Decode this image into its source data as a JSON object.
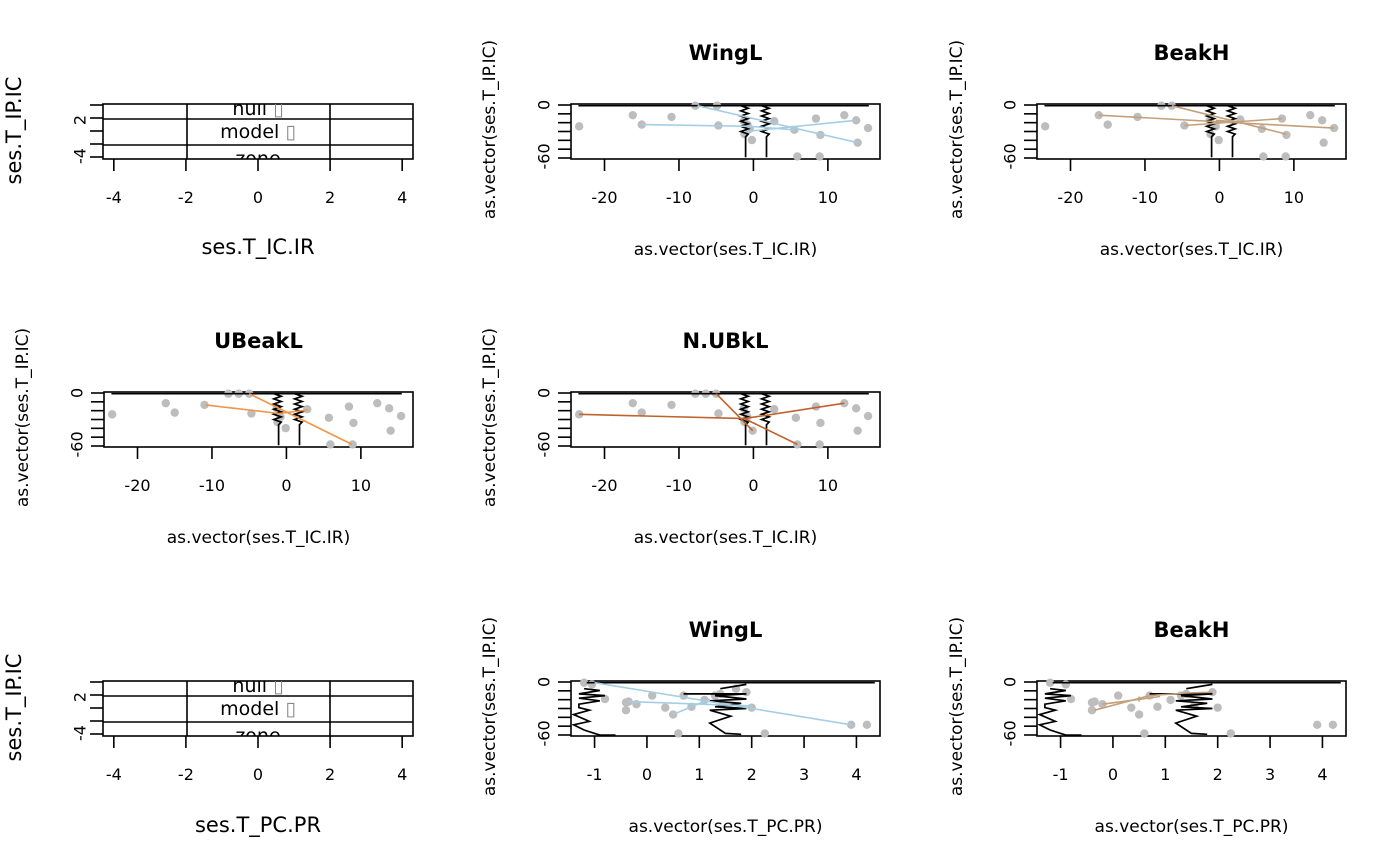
{
  "chart_data": [
    {
      "id": "legend-ir",
      "type": "table",
      "title": "",
      "xlabel": "ses.T_IC.IR",
      "ylabel": "ses.T_IP.IC",
      "xlim": [
        -4.3,
        4.3
      ],
      "xticks": [
        "-4",
        "-2",
        "0",
        "2",
        "4"
      ],
      "xtick_values": [
        -4,
        -2,
        0,
        2,
        4
      ],
      "yticks": [
        "2",
        "-4"
      ],
      "legend_rows": [
        "null",
        "model",
        "zone"
      ],
      "legend_glyph": "▯"
    },
    {
      "id": "wingl-ir",
      "type": "scatter",
      "title": "WingL",
      "xlabel": "as.vector(ses.T_IC.IR)",
      "ylabel": "as.vector(ses.T_IP.IC)",
      "xlim": [
        -24.5,
        17
      ],
      "ylim": [
        -63,
        1
      ],
      "xticks": [
        "-20",
        "-10",
        "0",
        "10"
      ],
      "xtick_values": [
        -20,
        -10,
        0,
        10
      ],
      "yticks": [
        "0",
        "-60"
      ],
      "ytick_values": [
        0,
        -60
      ],
      "line_color": "#a6cee3",
      "points": [
        [
          -23.4,
          -25
        ],
        [
          -16.2,
          -12
        ],
        [
          -15,
          -23
        ],
        [
          -11,
          -14
        ],
        [
          -7.8,
          -1
        ],
        [
          -4.9,
          -1
        ],
        [
          -4.7,
          -24
        ],
        [
          -1.3,
          -19
        ],
        [
          -0.8,
          -23
        ],
        [
          -1.2,
          -34
        ],
        [
          -0.2,
          -41
        ],
        [
          2.8,
          -19
        ],
        [
          5.9,
          -60
        ],
        [
          5.5,
          -29
        ],
        [
          8.4,
          -16
        ],
        [
          8.9,
          -60
        ],
        [
          9,
          -35
        ],
        [
          12.2,
          -12
        ],
        [
          13.8,
          -18
        ],
        [
          14,
          -44
        ],
        [
          15.4,
          -27
        ],
        [
          -0.5,
          -28
        ]
      ],
      "segments": [
        [
          [
            -15,
            -23
          ],
          [
            -0.5,
            -25
          ]
        ],
        [
          [
            -7.5,
            -1
          ],
          [
            14,
            -44
          ]
        ],
        [
          [
            -1,
            -31
          ],
          [
            13.8,
            -18
          ]
        ],
        [
          [
            -0.5,
            -25
          ],
          [
            5.5,
            -29
          ]
        ]
      ]
    },
    {
      "id": "beakh-ir",
      "type": "scatter",
      "title": "BeakH",
      "xlabel": "as.vector(ses.T_IC.IR)",
      "ylabel": "as.vector(ses.T_IP.IC)",
      "xlim": [
        -24.5,
        17
      ],
      "ylim": [
        -63,
        1
      ],
      "xticks": [
        "-20",
        "-10",
        "0",
        "10"
      ],
      "xtick_values": [
        -20,
        -10,
        0,
        10
      ],
      "yticks": [
        "0",
        "-60"
      ],
      "ytick_values": [
        0,
        -60
      ],
      "line_color": "#c4a07a",
      "points": [
        [
          -23.4,
          -25
        ],
        [
          -16.2,
          -12
        ],
        [
          -15,
          -23
        ],
        [
          -11,
          -14
        ],
        [
          -7.8,
          -1
        ],
        [
          -6.4,
          -1
        ],
        [
          -4.7,
          -24
        ],
        [
          -1.3,
          -18
        ],
        [
          -0.5,
          -25
        ],
        [
          -1.2,
          -34
        ],
        [
          -0.1,
          -41
        ],
        [
          2.8,
          -17
        ],
        [
          5.9,
          -60
        ],
        [
          5.7,
          -28
        ],
        [
          8.4,
          -16
        ],
        [
          8.9,
          -60
        ],
        [
          9,
          -35
        ],
        [
          12.2,
          -12
        ],
        [
          13.8,
          -18
        ],
        [
          14,
          -44
        ],
        [
          15.4,
          -27
        ]
      ],
      "segments": [
        [
          [
            -16.2,
            -12
          ],
          [
            15.4,
            -27
          ]
        ],
        [
          [
            -6.4,
            -1
          ],
          [
            9,
            -34
          ]
        ],
        [
          [
            -4.7,
            -24
          ],
          [
            8.4,
            -16
          ]
        ],
        [
          [
            -0.5,
            -18
          ],
          [
            2.8,
            -20
          ]
        ]
      ]
    },
    {
      "id": "ubeakl-ir",
      "type": "scatter",
      "title": "UBeakL",
      "xlabel": "as.vector(ses.T_IC.IR)",
      "ylabel": "as.vector(ses.T_IP.IC)",
      "xlim": [
        -24.5,
        17
      ],
      "ylim": [
        -63,
        1
      ],
      "xticks": [
        "-20",
        "-10",
        "0",
        "10"
      ],
      "xtick_values": [
        -20,
        -10,
        0,
        10
      ],
      "yticks": [
        "0",
        "-60"
      ],
      "ytick_values": [
        0,
        -60
      ],
      "line_color": "#f0954a",
      "points": [
        [
          -23.4,
          -25
        ],
        [
          -16.2,
          -12
        ],
        [
          -15,
          -23
        ],
        [
          -11,
          -14
        ],
        [
          -7.8,
          -1
        ],
        [
          -6.4,
          -1
        ],
        [
          -5,
          -1
        ],
        [
          -4.7,
          -24
        ],
        [
          -1.3,
          -18
        ],
        [
          -0.8,
          -28
        ],
        [
          -1.2,
          -34
        ],
        [
          -0.1,
          -41
        ],
        [
          2.8,
          -19
        ],
        [
          5.9,
          -60
        ],
        [
          5.7,
          -29
        ],
        [
          8.4,
          -16
        ],
        [
          8.9,
          -60
        ],
        [
          9,
          -35
        ],
        [
          12.2,
          -12
        ],
        [
          13.8,
          -18
        ],
        [
          14,
          -44
        ],
        [
          15.4,
          -27
        ]
      ],
      "segments": [
        [
          [
            -10.9,
            -14
          ],
          [
            -1,
            -24
          ]
        ],
        [
          [
            -1,
            -24
          ],
          [
            2.8,
            -20
          ]
        ],
        [
          [
            -5,
            -1
          ],
          [
            8.8,
            -60
          ]
        ]
      ]
    },
    {
      "id": "nubkl-ir",
      "type": "scatter",
      "title": "N.UBkL",
      "xlabel": "as.vector(ses.T_IC.IR)",
      "ylabel": "as.vector(ses.T_IP.IC)",
      "xlim": [
        -24.5,
        17
      ],
      "ylim": [
        -63,
        1
      ],
      "xticks": [
        "-20",
        "-10",
        "0",
        "10"
      ],
      "xtick_values": [
        -20,
        -10,
        0,
        10
      ],
      "yticks": [
        "0",
        "-60"
      ],
      "ytick_values": [
        0,
        -60
      ],
      "line_color": "#c0622c",
      "points": [
        [
          -23.4,
          -25
        ],
        [
          -16.2,
          -12
        ],
        [
          -15,
          -23
        ],
        [
          -11,
          -14
        ],
        [
          -7.8,
          -1
        ],
        [
          -6.4,
          -1
        ],
        [
          -5,
          -1
        ],
        [
          -4.7,
          -24
        ],
        [
          -1.3,
          -18
        ],
        [
          -0.8,
          -28
        ],
        [
          -1.2,
          -34
        ],
        [
          -0.1,
          -44
        ],
        [
          2.8,
          -19
        ],
        [
          5.9,
          -60
        ],
        [
          5.7,
          -29
        ],
        [
          8.4,
          -16
        ],
        [
          8.9,
          -60
        ],
        [
          9,
          -35
        ],
        [
          12.2,
          -12
        ],
        [
          13.8,
          -18
        ],
        [
          14,
          -44
        ],
        [
          15.4,
          -27
        ]
      ],
      "segments": [
        [
          [
            -23.4,
            -25
          ],
          [
            -1.2,
            -30
          ]
        ],
        [
          [
            -1.2,
            -30
          ],
          [
            12.2,
            -12
          ]
        ],
        [
          [
            -5,
            -1
          ],
          [
            -0.1,
            -44
          ]
        ],
        [
          [
            -1.2,
            -30
          ],
          [
            5.9,
            -60
          ]
        ]
      ]
    },
    {
      "id": "legend-pr",
      "type": "table",
      "title": "",
      "xlabel": "ses.T_PC.PR",
      "ylabel": "ses.T_IP.IC",
      "xlim": [
        -4.3,
        4.3
      ],
      "xticks": [
        "-4",
        "-2",
        "0",
        "2",
        "4"
      ],
      "xtick_values": [
        -4,
        -2,
        0,
        2,
        4
      ],
      "yticks": [
        "2",
        "-4"
      ],
      "legend_rows": [
        "null",
        "model",
        "zone"
      ],
      "legend_glyph": "▯"
    },
    {
      "id": "wingl-pr",
      "type": "scatter",
      "title": "WingL",
      "xlabel": "as.vector(ses.T_PC.PR)",
      "ylabel": "as.vector(ses.T_IP.IC)",
      "xlim": [
        -1.45,
        4.45
      ],
      "ylim": [
        -63,
        1
      ],
      "xticks": [
        "-1",
        "0",
        "1",
        "2",
        "3",
        "4"
      ],
      "xtick_values": [
        -1,
        0,
        1,
        2,
        3,
        4
      ],
      "yticks": [
        "0",
        "-60"
      ],
      "ytick_values": [
        0,
        -60
      ],
      "line_color": "#a6cee3",
      "points": [
        [
          -1.2,
          -1
        ],
        [
          -1.05,
          -3
        ],
        [
          -0.8,
          -20
        ],
        [
          -0.4,
          -24
        ],
        [
          -0.35,
          -23
        ],
        [
          -0.4,
          -33
        ],
        [
          -0.2,
          -26
        ],
        [
          0.1,
          -16
        ],
        [
          0.35,
          -30
        ],
        [
          0.5,
          -38
        ],
        [
          0.6,
          -60
        ],
        [
          0.7,
          -16
        ],
        [
          0.85,
          -29
        ],
        [
          1.1,
          -21
        ],
        [
          1.3,
          -16
        ],
        [
          1.4,
          -14
        ],
        [
          1.55,
          -28
        ],
        [
          1.9,
          -12
        ],
        [
          2,
          -30
        ],
        [
          2.25,
          -60
        ],
        [
          3.9,
          -50
        ],
        [
          4.2,
          -50
        ],
        [
          1.7,
          -8
        ]
      ],
      "segments": [
        [
          [
            -1,
            -1
          ],
          [
            3.9,
            -50
          ]
        ],
        [
          [
            -0.35,
            -23
          ],
          [
            2,
            -28
          ]
        ],
        [
          [
            0.5,
            -38
          ],
          [
            1.2,
            -20
          ]
        ]
      ]
    },
    {
      "id": "beakh-pr",
      "type": "scatter",
      "title": "BeakH",
      "xlabel": "as.vector(ses.T_PC.PR)",
      "ylabel": "as.vector(ses.T_IP.IC)",
      "xlim": [
        -1.45,
        4.45
      ],
      "ylim": [
        -63,
        1
      ],
      "xticks": [
        "-1",
        "0",
        "1",
        "2",
        "3",
        "4"
      ],
      "xtick_values": [
        -1,
        0,
        1,
        2,
        3,
        4
      ],
      "yticks": [
        "0",
        "-60"
      ],
      "ytick_values": [
        0,
        -60
      ],
      "line_color": "#c4a07a",
      "points": [
        [
          -1.2,
          -1
        ],
        [
          -0.9,
          -3
        ],
        [
          -0.8,
          -20
        ],
        [
          -0.4,
          -24
        ],
        [
          -0.35,
          -23
        ],
        [
          -0.4,
          -33
        ],
        [
          -0.2,
          -26
        ],
        [
          0.1,
          -16
        ],
        [
          0.35,
          -30
        ],
        [
          0.5,
          -38
        ],
        [
          0.6,
          -60
        ],
        [
          0.7,
          -16
        ],
        [
          0.85,
          -29
        ],
        [
          1.1,
          -21
        ],
        [
          1.3,
          -16
        ],
        [
          1.4,
          -14
        ],
        [
          1.55,
          -28
        ],
        [
          1.9,
          -12
        ],
        [
          2,
          -30
        ],
        [
          2.25,
          -60
        ],
        [
          3.9,
          -50
        ],
        [
          4.2,
          -50
        ]
      ],
      "segments": [
        [
          [
            -0.35,
            -33
          ],
          [
            0.7,
            -16
          ],
          [
            1.4,
            -13
          ],
          [
            1.9,
            -12
          ]
        ],
        [
          [
            -0.2,
            -26
          ],
          [
            0.9,
            -17
          ]
        ],
        [
          [
            0.5,
            -23
          ],
          [
            0.5,
            -17
          ]
        ]
      ]
    }
  ],
  "envelope_note": "black jagged null-model envelope lines drawn in each scatter panel"
}
